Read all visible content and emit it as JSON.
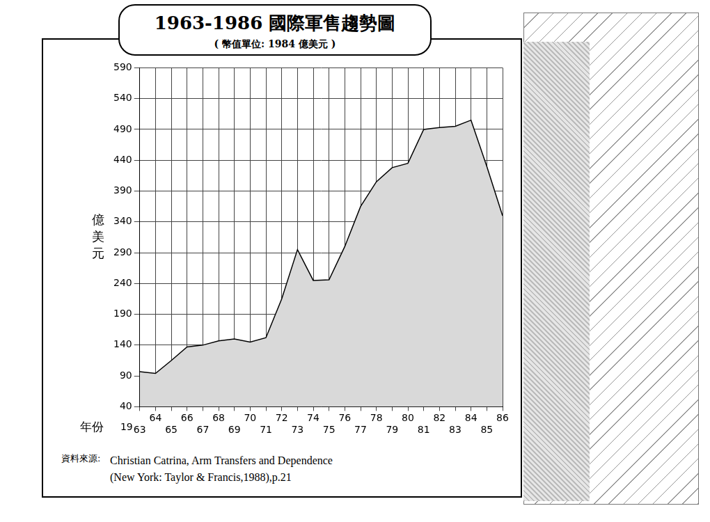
{
  "chart_data": {
    "type": "line",
    "title": "1963-1986 國際軍售趨勢圖",
    "subtitle": "( 幣值單位: 1984 億美元 )",
    "ylabel": "億美元",
    "xlabel": "年份",
    "x_prefix": "19",
    "categories": [
      "63",
      "64",
      "65",
      "66",
      "67",
      "68",
      "69",
      "70",
      "71",
      "72",
      "73",
      "74",
      "75",
      "76",
      "77",
      "78",
      "79",
      "80",
      "81",
      "82",
      "83",
      "84",
      "85",
      "86"
    ],
    "values": [
      97,
      94,
      115,
      137,
      140,
      147,
      150,
      145,
      152,
      215,
      295,
      245,
      246,
      300,
      365,
      405,
      428,
      435,
      490,
      493,
      495,
      505,
      430,
      350
    ],
    "color": "#d9d9d9",
    "ylim": [
      40,
      590
    ],
    "yticks": [
      40,
      90,
      140,
      190,
      240,
      290,
      340,
      390,
      440,
      490,
      540,
      590
    ],
    "grid": true,
    "source_label": "資料來源:",
    "source": [
      "Christian Catrina, Arm Transfers and Dependence",
      "(New York: Taylor & Francis,1988),p.21"
    ]
  }
}
